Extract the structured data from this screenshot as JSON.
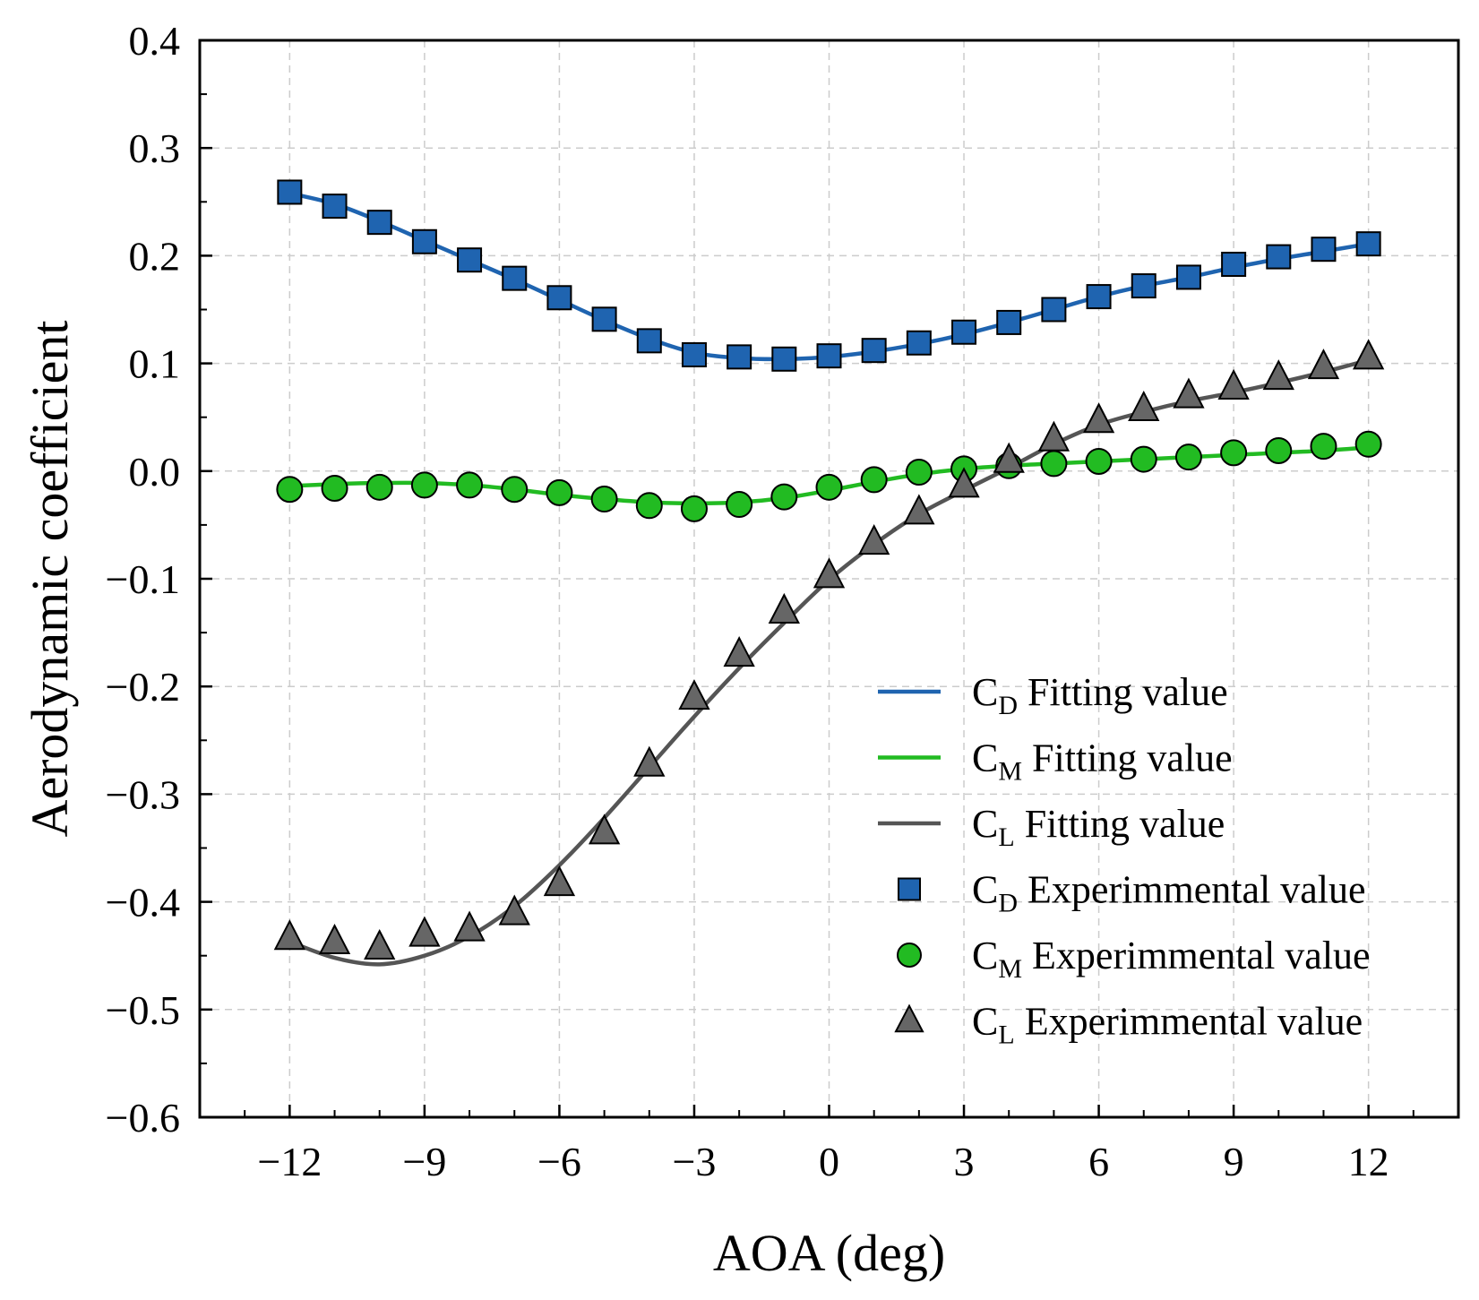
{
  "chart_data": {
    "type": "line",
    "xlabel": "AOA (deg)",
    "ylabel": "Aerodynamic coefficient",
    "xlim": [
      -14,
      14
    ],
    "ylim": [
      -0.6,
      0.4
    ],
    "grid": true,
    "legend_position": "bottom-right",
    "x_ticks": [
      {
        "value": -12,
        "label": "−12"
      },
      {
        "value": -9,
        "label": "−9"
      },
      {
        "value": -6,
        "label": "−6"
      },
      {
        "value": -3,
        "label": "−3"
      },
      {
        "value": 0,
        "label": "0"
      },
      {
        "value": 3,
        "label": "3"
      },
      {
        "value": 6,
        "label": "6"
      },
      {
        "value": 9,
        "label": "9"
      },
      {
        "value": 12,
        "label": "12"
      }
    ],
    "y_ticks": [
      {
        "value": 0.4,
        "label": "0.4"
      },
      {
        "value": 0.3,
        "label": "0.3"
      },
      {
        "value": 0.2,
        "label": "0.2"
      },
      {
        "value": 0.1,
        "label": "0.1"
      },
      {
        "value": 0.0,
        "label": "0.0"
      },
      {
        "value": -0.1,
        "label": "−0.1"
      },
      {
        "value": -0.2,
        "label": "−0.2"
      },
      {
        "value": -0.3,
        "label": "−0.3"
      },
      {
        "value": -0.4,
        "label": "−0.4"
      },
      {
        "value": -0.5,
        "label": "−0.5"
      },
      {
        "value": -0.6,
        "label": "−0.6"
      }
    ],
    "x": [
      -12,
      -11,
      -10,
      -9,
      -8,
      -7,
      -6,
      -5,
      -4,
      -3,
      -2,
      -1,
      0,
      1,
      2,
      3,
      4,
      5,
      6,
      7,
      8,
      9,
      10,
      11,
      12
    ],
    "series": [
      {
        "id": "cd-fit",
        "kind": "line",
        "color": "#1f64b0",
        "legend_main": "C",
        "legend_sub": "D",
        "legend_rest": " Fitting value",
        "values": [
          0.258,
          0.248,
          0.232,
          0.214,
          0.196,
          0.178,
          0.159,
          0.14,
          0.123,
          0.11,
          0.105,
          0.104,
          0.106,
          0.111,
          0.118,
          0.127,
          0.138,
          0.15,
          0.162,
          0.172,
          0.18,
          0.189,
          0.197,
          0.204,
          0.211
        ]
      },
      {
        "id": "cm-fit",
        "kind": "line",
        "color": "#22bb22",
        "legend_main": "C",
        "legend_sub": "M",
        "legend_rest": " Fitting value",
        "values": [
          -0.014,
          -0.012,
          -0.011,
          -0.011,
          -0.013,
          -0.017,
          -0.022,
          -0.026,
          -0.029,
          -0.03,
          -0.029,
          -0.025,
          -0.018,
          -0.01,
          -0.003,
          0.002,
          0.005,
          0.007,
          0.009,
          0.011,
          0.013,
          0.015,
          0.017,
          0.019,
          0.022
        ]
      },
      {
        "id": "cl-fit",
        "kind": "line",
        "color": "#555555",
        "legend_main": "C",
        "legend_sub": "L",
        "legend_rest": " Fitting value",
        "values": [
          -0.437,
          -0.452,
          -0.458,
          -0.45,
          -0.432,
          -0.404,
          -0.366,
          -0.322,
          -0.275,
          -0.228,
          -0.183,
          -0.141,
          -0.101,
          -0.068,
          -0.04,
          -0.018,
          0.003,
          0.025,
          0.043,
          0.055,
          0.065,
          0.073,
          0.082,
          0.092,
          0.103
        ]
      },
      {
        "id": "cd-exp",
        "kind": "marker",
        "marker": "square",
        "color": "#1f64b0",
        "legend_main": "C",
        "legend_sub": "D",
        "legend_rest": " Experimmental value",
        "values": [
          0.259,
          0.246,
          0.231,
          0.213,
          0.196,
          0.179,
          0.161,
          0.141,
          0.121,
          0.108,
          0.106,
          0.104,
          0.107,
          0.112,
          0.119,
          0.129,
          0.138,
          0.15,
          0.162,
          0.172,
          0.18,
          0.192,
          0.199,
          0.206,
          0.211
        ]
      },
      {
        "id": "cm-exp",
        "kind": "marker",
        "marker": "circle",
        "color": "#22bb22",
        "legend_main": "C",
        "legend_sub": "M",
        "legend_rest": " Experimmental value",
        "values": [
          -0.017,
          -0.016,
          -0.015,
          -0.013,
          -0.013,
          -0.017,
          -0.02,
          -0.026,
          -0.032,
          -0.035,
          -0.031,
          -0.024,
          -0.015,
          -0.008,
          -0.001,
          0.002,
          0.005,
          0.007,
          0.009,
          0.011,
          0.013,
          0.017,
          0.019,
          0.023,
          0.025
        ]
      },
      {
        "id": "cl-exp",
        "kind": "marker",
        "marker": "triangle",
        "color": "#666666",
        "legend_main": "C",
        "legend_sub": "L",
        "legend_rest": " Experimmental value",
        "values": [
          -0.433,
          -0.437,
          -0.442,
          -0.43,
          -0.425,
          -0.41,
          -0.383,
          -0.335,
          -0.272,
          -0.21,
          -0.17,
          -0.13,
          -0.097,
          -0.066,
          -0.038,
          -0.013,
          0.01,
          0.03,
          0.047,
          0.058,
          0.07,
          0.078,
          0.087,
          0.097,
          0.106
        ]
      }
    ]
  }
}
